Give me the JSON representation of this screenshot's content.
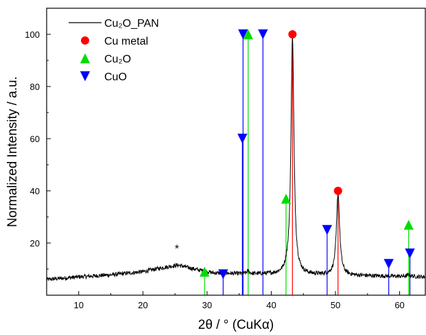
{
  "chart_data": {
    "type": "line",
    "xlabel": "2θ / ° (CuKα)",
    "ylabel": "Normalized Intensity / a.u.",
    "xlim": [
      5,
      64
    ],
    "ylim": [
      0,
      110
    ],
    "xticks": [
      10,
      20,
      30,
      40,
      50,
      60
    ],
    "yticks": [
      20,
      40,
      60,
      80,
      100
    ],
    "grid": false,
    "legend_position": "top-left",
    "legend": [
      {
        "label": "Cu₂O_PAN",
        "marker": "line",
        "color": "#000000"
      },
      {
        "label": "Cu metal",
        "marker": "circle",
        "color": "#ff0000"
      },
      {
        "label": "Cu₂O",
        "marker": "triangle-up",
        "color": "#00dd00"
      },
      {
        "label": "CuO",
        "marker": "triangle-down",
        "color": "#0000ff"
      }
    ],
    "series": [
      {
        "name": "Cu₂O_PAN",
        "color": "#000000",
        "baseline_points": [
          [
            5,
            6
          ],
          [
            10,
            7
          ],
          [
            15,
            7.8
          ],
          [
            20,
            9
          ],
          [
            23,
            10.5
          ],
          [
            25.5,
            11.5
          ],
          [
            28,
            10
          ],
          [
            31,
            8.5
          ],
          [
            35,
            8.2
          ],
          [
            40,
            8
          ],
          [
            45,
            7.8
          ],
          [
            50,
            7.6
          ],
          [
            55,
            7.4
          ],
          [
            60,
            7.2
          ],
          [
            64,
            7
          ]
        ],
        "peaks": [
          {
            "x": 36.4,
            "height": 1.0,
            "width": 0.25
          },
          {
            "x": 42.4,
            "height": 1.0,
            "width": 0.25
          },
          {
            "x": 43.3,
            "height": 91.5,
            "width": 0.28
          },
          {
            "x": 50.4,
            "height": 31.5,
            "width": 0.3
          },
          {
            "x": 61.5,
            "height": 0.8,
            "width": 0.3
          }
        ]
      }
    ],
    "reference_sticks": [
      {
        "phase": "Cu metal",
        "color": "#ff0000",
        "marker": "circle",
        "peaks": [
          {
            "x": 43.3,
            "y": 100
          },
          {
            "x": 50.4,
            "y": 40
          }
        ]
      },
      {
        "phase": "Cu₂O",
        "color": "#00dd00",
        "marker": "triangle-up",
        "peaks": [
          {
            "x": 29.6,
            "y": 9
          },
          {
            "x": 36.4,
            "y": 100
          },
          {
            "x": 42.3,
            "y": 37
          },
          {
            "x": 61.4,
            "y": 27
          }
        ]
      },
      {
        "phase": "CuO",
        "color": "#0000ff",
        "marker": "triangle-down",
        "peaks": [
          {
            "x": 32.5,
            "y": 8
          },
          {
            "x": 35.5,
            "y": 60
          },
          {
            "x": 35.6,
            "y": 100
          },
          {
            "x": 38.7,
            "y": 100
          },
          {
            "x": 48.7,
            "y": 25
          },
          {
            "x": 58.3,
            "y": 12
          },
          {
            "x": 61.6,
            "y": 16
          }
        ]
      }
    ],
    "annotations": [
      {
        "text": "*",
        "x": 25.3,
        "y": 16.5
      }
    ]
  }
}
